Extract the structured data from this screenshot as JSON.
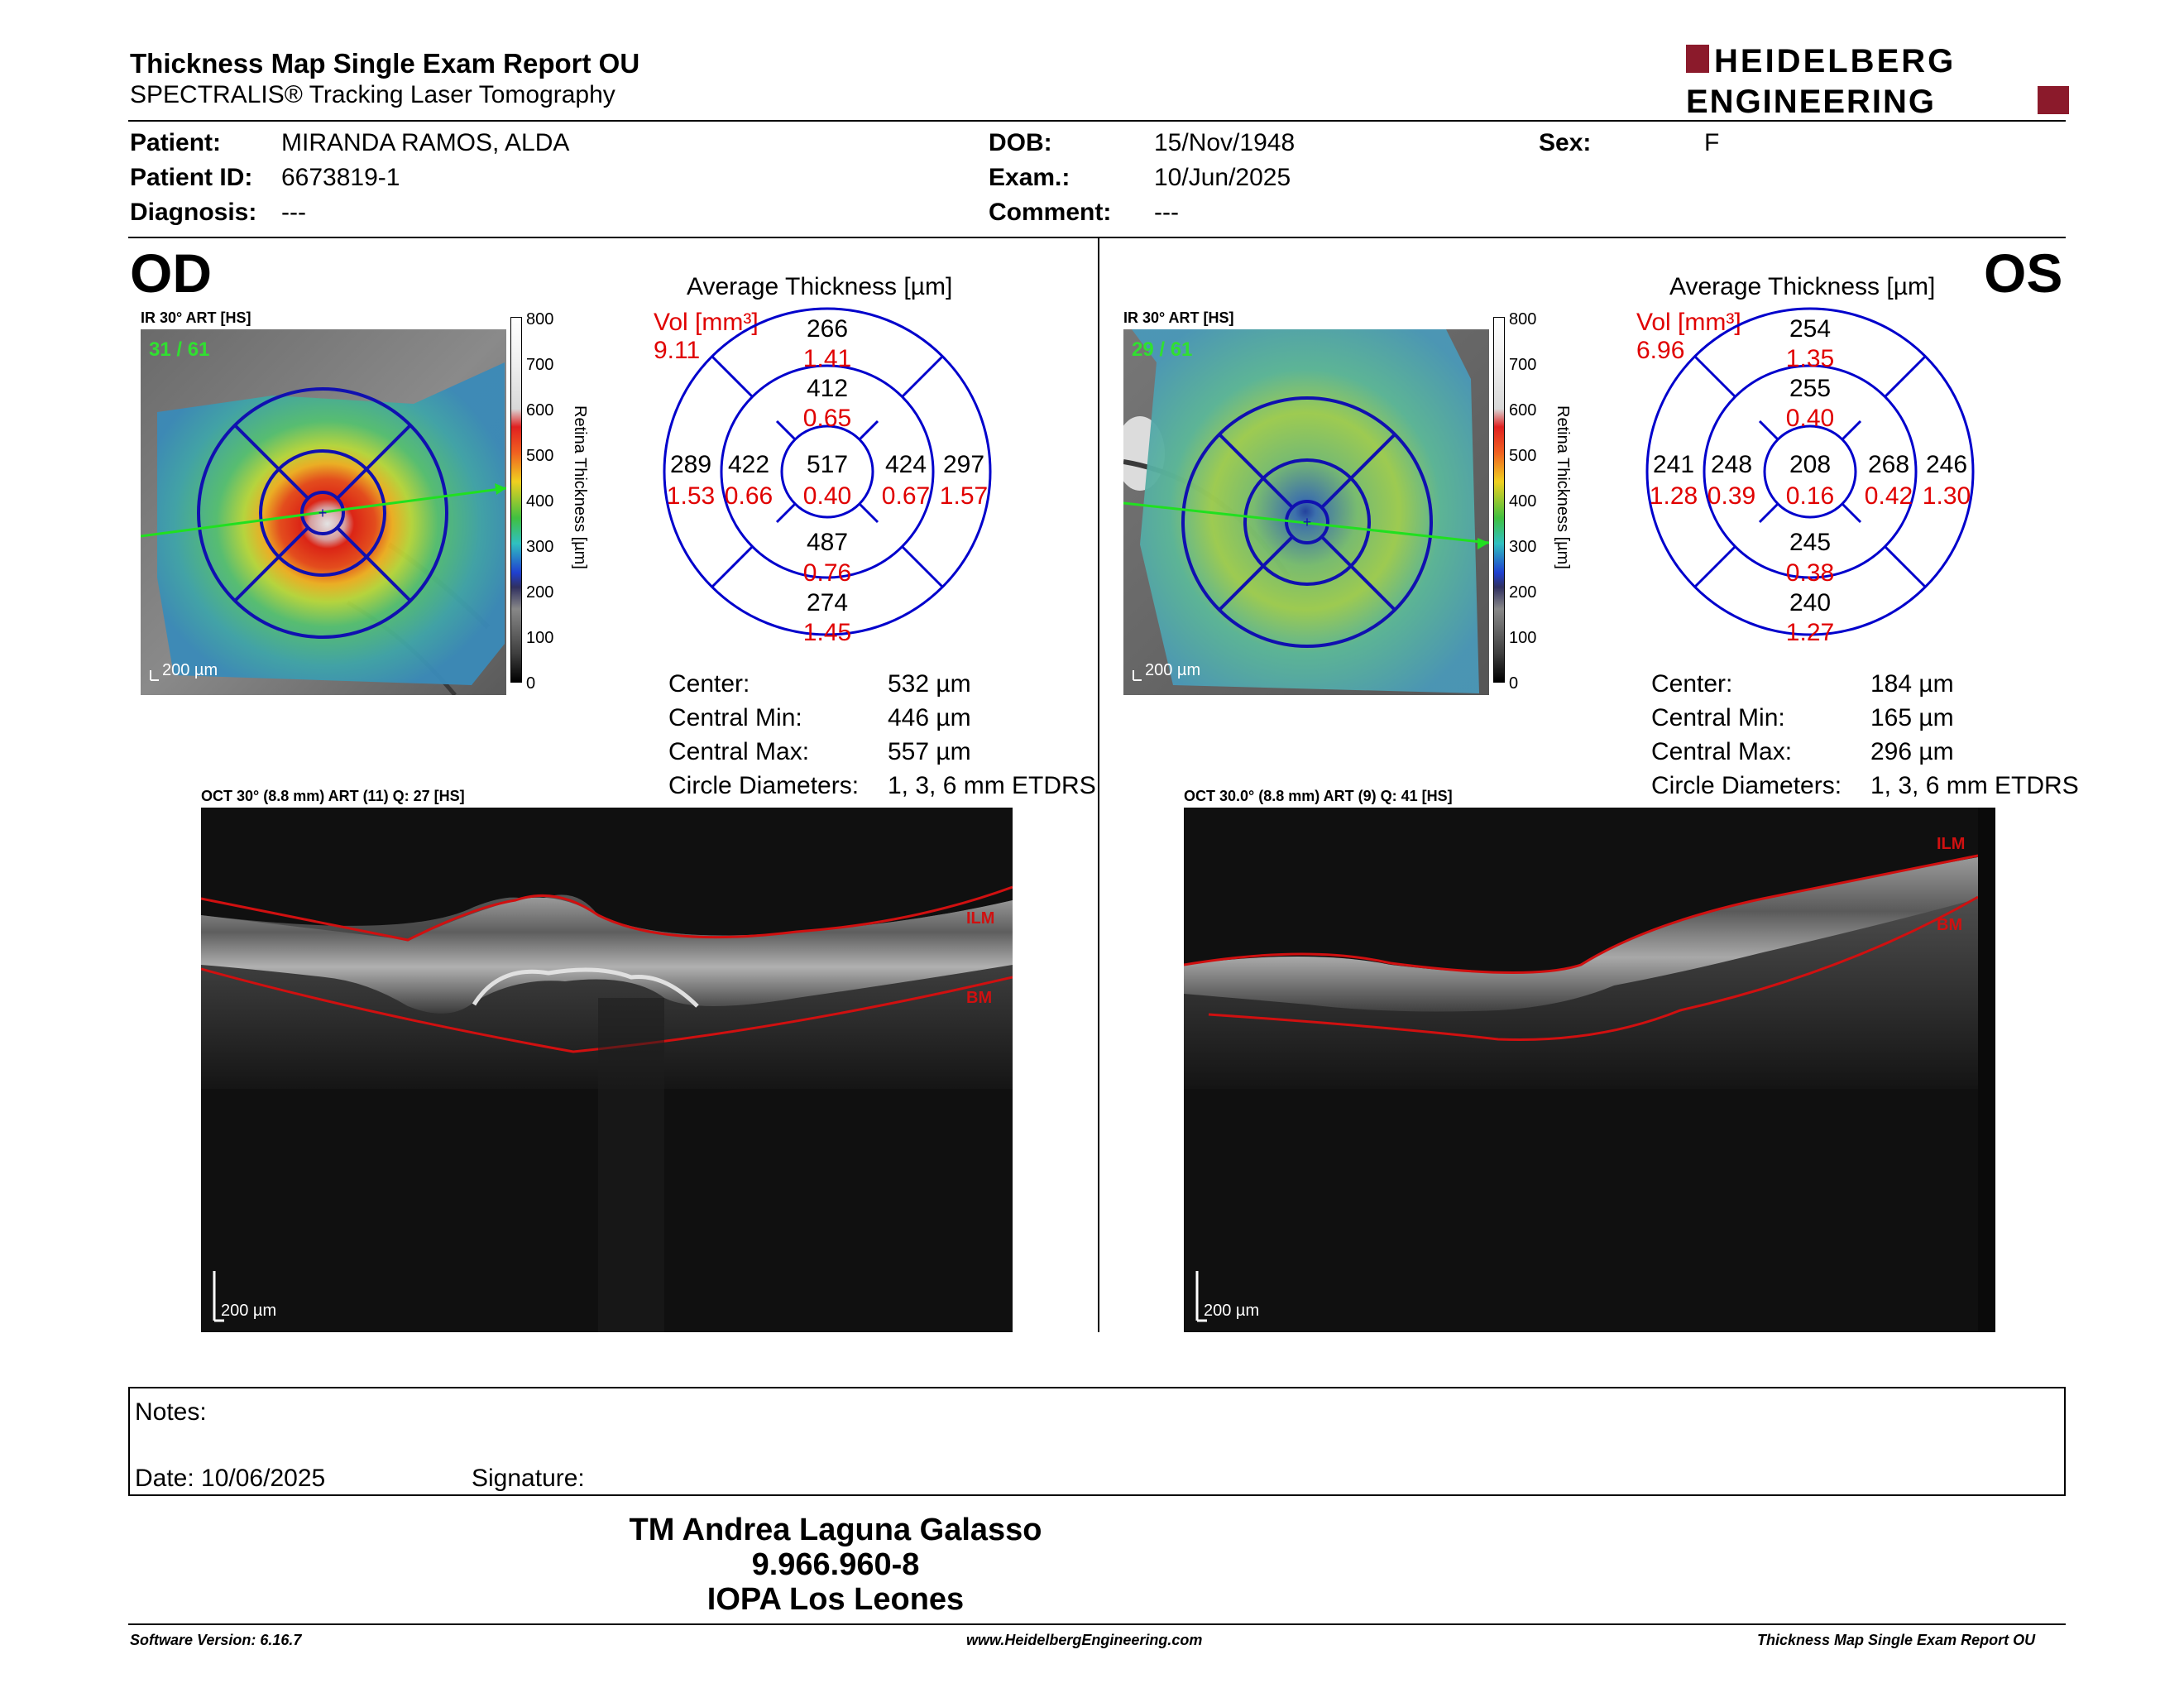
{
  "header": {
    "title": "Thickness Map Single Exam Report OU",
    "subtitle": "SPECTRALIS® Tracking Laser Tomography",
    "logo_line1": "HEIDELBERG",
    "logo_line2": "ENGINEERING",
    "brand_color": "#8b1a2b"
  },
  "patient": {
    "patient_label": "Patient:",
    "patient_value": "MIRANDA RAMOS, ALDA",
    "id_label": "Patient ID:",
    "id_value": "6673819-1",
    "diag_label": "Diagnosis:",
    "diag_value": "---",
    "dob_label": "DOB:",
    "dob_value": "15/Nov/1948",
    "exam_label": "Exam.:",
    "exam_value": "10/Jun/2025",
    "comment_label": "Comment:",
    "comment_value": "---",
    "sex_label": "Sex:",
    "sex_value": "F"
  },
  "colorbar": {
    "ticks": [
      "800",
      "700",
      "600",
      "500",
      "400",
      "300",
      "200",
      "100",
      "0"
    ],
    "label": "Retina Thickness [µm]"
  },
  "od": {
    "eye": "OD",
    "ir_caption": "IR 30° ART [HS]",
    "ir_count": "31 / 61",
    "ir_scale": "200 µm",
    "avg_title": "Average Thickness [µm]",
    "vol_label": "Vol [mm³]",
    "vol_total": "9.11",
    "grid": {
      "center": {
        "thk": "517",
        "vol": "0.40"
      },
      "inner_sup": {
        "thk": "412",
        "vol": "0.65"
      },
      "inner_nasal_l": {
        "thk": "422",
        "vol": "0.66"
      },
      "inner_r": {
        "thk": "424",
        "vol": "0.67"
      },
      "inner_inf": {
        "thk": "487",
        "vol": "0.76"
      },
      "outer_sup": {
        "thk": "266",
        "vol": "1.41"
      },
      "outer_l": {
        "thk": "289",
        "vol": "1.53"
      },
      "outer_r": {
        "thk": "297",
        "vol": "1.57"
      },
      "outer_inf": {
        "thk": "274",
        "vol": "1.45"
      }
    },
    "stats": [
      {
        "label": "Center:",
        "value": "532 µm"
      },
      {
        "label": "Central Min:",
        "value": "446 µm"
      },
      {
        "label": "Central Max:",
        "value": "557 µm"
      },
      {
        "label": "Circle Diameters:",
        "value": "1, 3, 6 mm ETDRS"
      }
    ],
    "oct_caption": "OCT 30° (8.8 mm) ART (11) Q: 27 [HS]",
    "oct_scale": "200 µm",
    "ilm": "ILM",
    "bm": "BM"
  },
  "os": {
    "eye": "OS",
    "ir_caption": "IR 30° ART [HS]",
    "ir_count": "29 / 61",
    "ir_scale": "200 µm",
    "avg_title": "Average Thickness [µm]",
    "vol_label": "Vol [mm³]",
    "vol_total": "6.96",
    "grid": {
      "center": {
        "thk": "208",
        "vol": "0.16"
      },
      "inner_sup": {
        "thk": "255",
        "vol": "0.40"
      },
      "inner_nasal_l": {
        "thk": "248",
        "vol": "0.39"
      },
      "inner_r": {
        "thk": "268",
        "vol": "0.42"
      },
      "inner_inf": {
        "thk": "245",
        "vol": "0.38"
      },
      "outer_sup": {
        "thk": "254",
        "vol": "1.35"
      },
      "outer_l": {
        "thk": "241",
        "vol": "1.28"
      },
      "outer_r": {
        "thk": "246",
        "vol": "1.30"
      },
      "outer_inf": {
        "thk": "240",
        "vol": "1.27"
      }
    },
    "stats": [
      {
        "label": "Center:",
        "value": "184 µm"
      },
      {
        "label": "Central Min:",
        "value": "165 µm"
      },
      {
        "label": "Central Max:",
        "value": "296 µm"
      },
      {
        "label": "Circle Diameters:",
        "value": "1, 3, 6 mm ETDRS"
      }
    ],
    "oct_caption": "OCT 30.0° (8.8 mm) ART (9) Q: 41 [HS]",
    "oct_scale": "200 µm",
    "ilm": "ILM",
    "bm": "BM"
  },
  "notes": {
    "notes_label": "Notes:",
    "date_label": "Date: 10/06/2025",
    "signature_label": "Signature:"
  },
  "signature": {
    "name": "TM Andrea Laguna Galasso",
    "id": "9.966.960-8",
    "org": "IOPA Los Leones"
  },
  "footer": {
    "version": "Software Version: 6.16.7",
    "url": "www.HeidelbergEngineering.com",
    "report": "Thickness Map Single Exam Report OU"
  },
  "colors": {
    "grid_blue": "#0000cc",
    "vol_red": "#e00000",
    "ilm_red": "#d01010"
  }
}
